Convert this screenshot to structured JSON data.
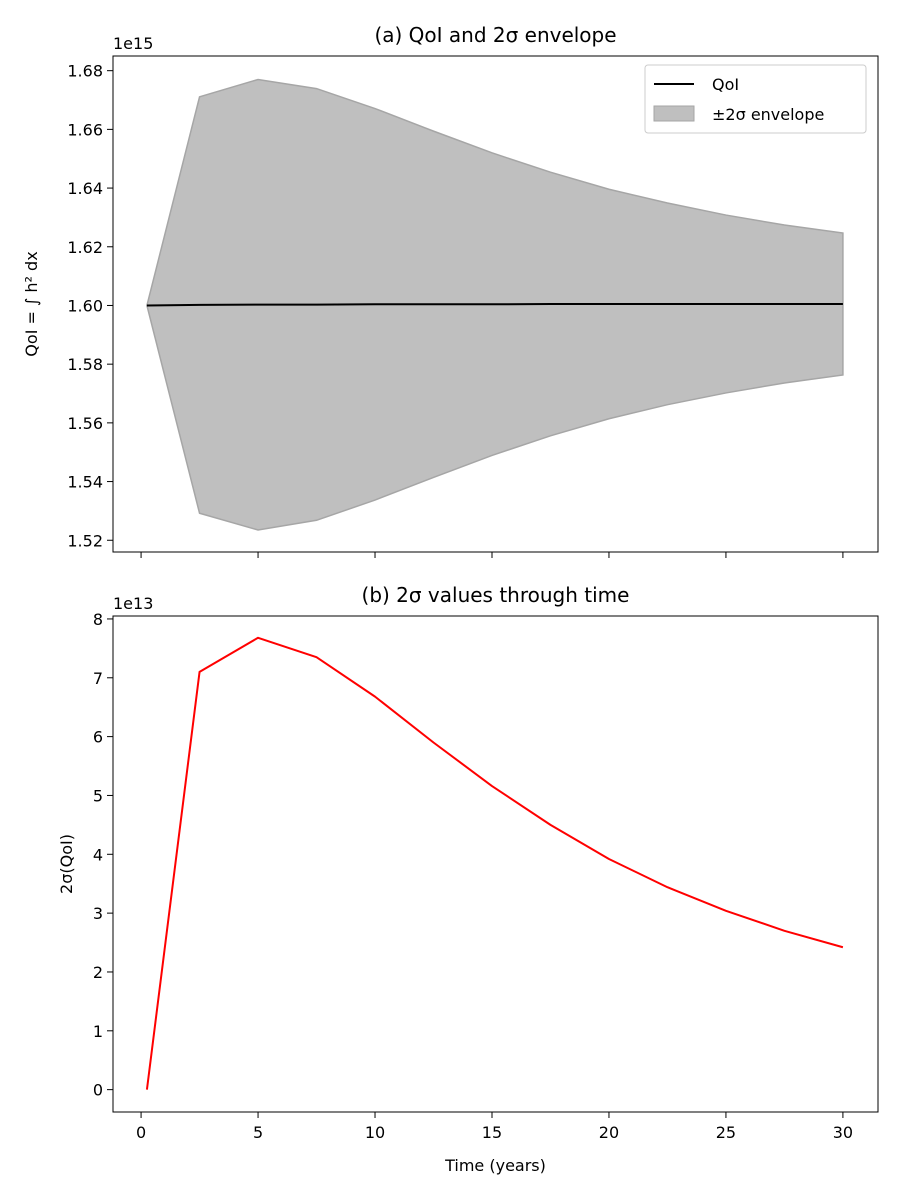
{
  "chart_data": [
    {
      "type": "area",
      "title": "(a) QoI and 2σ envelope",
      "ylabel": "QoI = ∫ h² dx",
      "xlabel": "",
      "offset_text": "1e15",
      "y_scale_factor": 1000000000000000.0,
      "x": [
        0.25,
        2.5,
        5,
        7.5,
        10,
        12.5,
        15,
        17.5,
        20,
        22.5,
        25,
        27.5,
        30
      ],
      "xlim": [
        -1.2,
        31.5
      ],
      "ylim": [
        1.516,
        1.685
      ],
      "xticks": [
        0,
        5,
        10,
        15,
        20,
        25,
        30
      ],
      "yticks": [
        1.52,
        1.54,
        1.56,
        1.58,
        1.6,
        1.62,
        1.64,
        1.66,
        1.68
      ],
      "ytick_labels": [
        "1.52",
        "1.54",
        "1.56",
        "1.58",
        "1.60",
        "1.62",
        "1.64",
        "1.66",
        "1.68"
      ],
      "show_xtick_labels": false,
      "grid": false,
      "legend_placement": "upper-right",
      "series": [
        {
          "name": "QoI",
          "kind": "line",
          "color": "#000000",
          "values": [
            1.6,
            1.6002,
            1.6003,
            1.6003,
            1.6004,
            1.6004,
            1.6004,
            1.6005,
            1.6005,
            1.6005,
            1.6005,
            1.6005,
            1.6005
          ]
        },
        {
          "name": "±2σ envelope",
          "kind": "band",
          "color": "#bfbfbf",
          "edge_color": "#a6a6a6",
          "upper": [
            1.6,
            1.6711,
            1.677,
            1.6739,
            1.6671,
            1.6594,
            1.652,
            1.6454,
            1.6396,
            1.6349,
            1.6308,
            1.6274,
            1.6247
          ],
          "lower": [
            1.6,
            1.5292,
            1.5235,
            1.5268,
            1.5337,
            1.5414,
            1.5489,
            1.5556,
            1.5614,
            1.5662,
            1.5702,
            1.5736,
            1.5763
          ]
        }
      ]
    },
    {
      "type": "line",
      "title": "(b) 2σ values through time",
      "ylabel": "2σ(QoI)",
      "xlabel": "Time (years)",
      "offset_text": "1e13",
      "y_scale_factor": 10000000000000.0,
      "x": [
        0.25,
        2.5,
        5,
        7.5,
        10,
        12.5,
        15,
        17.5,
        20,
        22.5,
        25,
        27.5,
        30
      ],
      "xlim": [
        -1.2,
        31.5
      ],
      "ylim": [
        -0.38,
        8.05
      ],
      "xticks": [
        0,
        5,
        10,
        15,
        20,
        25,
        30
      ],
      "xtick_labels": [
        "0",
        "5",
        "10",
        "15",
        "20",
        "25",
        "30"
      ],
      "yticks": [
        0,
        1,
        2,
        3,
        4,
        5,
        6,
        7,
        8
      ],
      "ytick_labels": [
        "0",
        "1",
        "2",
        "3",
        "4",
        "5",
        "6",
        "7",
        "8"
      ],
      "show_xtick_labels": true,
      "grid": false,
      "series": [
        {
          "kind": "line",
          "color": "#ff0000",
          "values": [
            0.0,
            7.1,
            7.68,
            7.35,
            6.68,
            5.9,
            5.16,
            4.5,
            3.92,
            3.44,
            3.04,
            2.7,
            2.42
          ]
        }
      ]
    }
  ]
}
